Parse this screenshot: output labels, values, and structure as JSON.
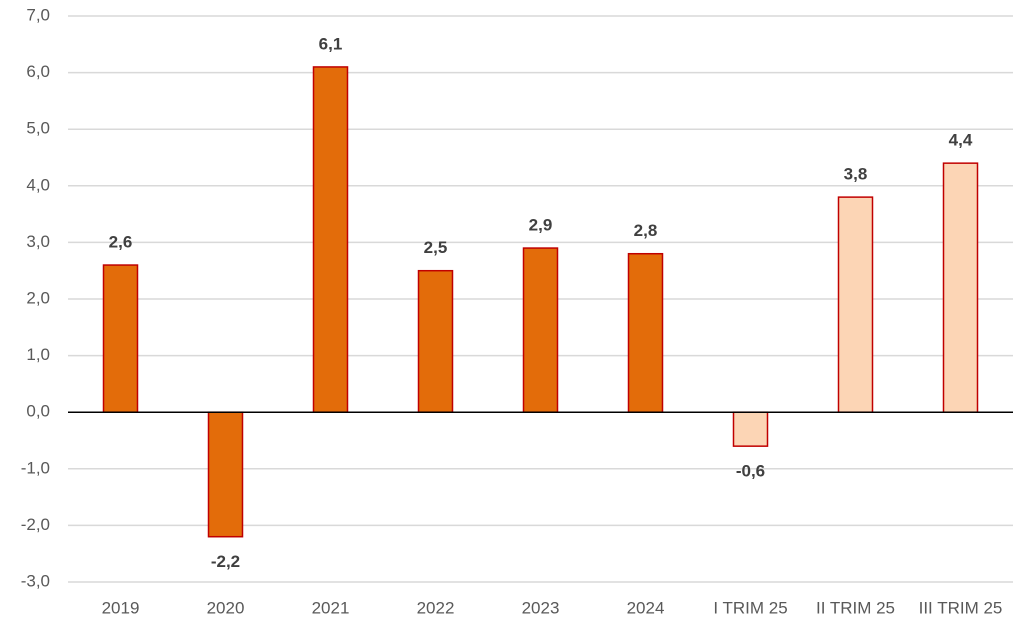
{
  "chart_data": {
    "type": "bar",
    "categories": [
      "2019",
      "2020",
      "2021",
      "2022",
      "2023",
      "2024",
      "I TRIM 25",
      "II TRIM 25",
      "III TRIM 25"
    ],
    "values": [
      2.6,
      -2.2,
      6.1,
      2.5,
      2.9,
      2.8,
      -0.6,
      3.8,
      4.4
    ],
    "value_labels": [
      "2,6",
      "-2,2",
      "6,1",
      "2,5",
      "2,9",
      "2,8",
      "-0,6",
      "3,8",
      "4,4"
    ],
    "colors": [
      "#e36c0a",
      "#e36c0a",
      "#e36c0a",
      "#e36c0a",
      "#e36c0a",
      "#e36c0a",
      "#fcd5b5",
      "#fcd5b5",
      "#fcd5b5"
    ],
    "edge_color": "#c00000",
    "ylim": [
      -3,
      7
    ],
    "yticks": [
      {
        "value": -3,
        "label": "-3,0"
      },
      {
        "value": -2,
        "label": "-2,0"
      },
      {
        "value": -1,
        "label": "-1,0"
      },
      {
        "value": 0,
        "label": "0,0"
      },
      {
        "value": 1,
        "label": "1,0"
      },
      {
        "value": 2,
        "label": "2,0"
      },
      {
        "value": 3,
        "label": "3,0"
      },
      {
        "value": 4,
        "label": "4,0"
      },
      {
        "value": 5,
        "label": "5,0"
      },
      {
        "value": 6,
        "label": "6,0"
      },
      {
        "value": 7,
        "label": "7,0"
      }
    ],
    "grid": true
  }
}
